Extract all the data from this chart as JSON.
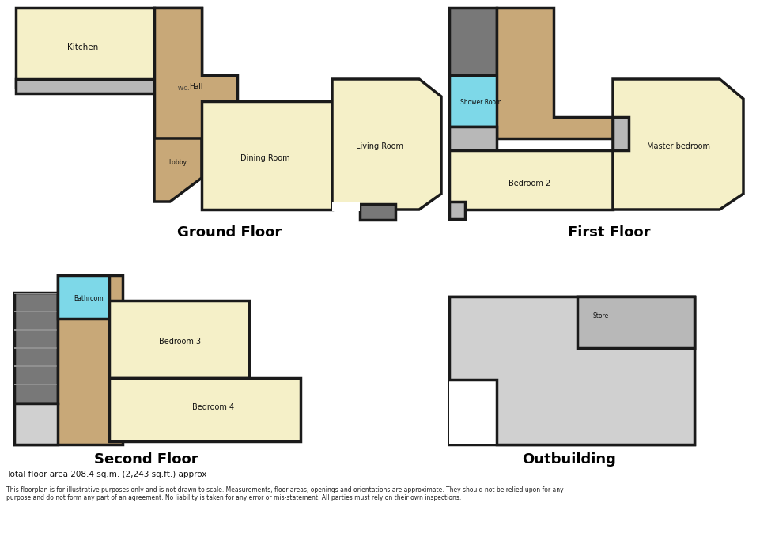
{
  "bg_color": "#ffffff",
  "wall_color": "#1a1a1a",
  "room_colors": {
    "cream": "#f5f0c8",
    "brown": "#c8a878",
    "cyan": "#7dd8e8",
    "grey": "#b8b8b8",
    "dark_grey": "#787878",
    "light_grey": "#d0d0d0",
    "stair_grey": "#909090"
  },
  "labels": {
    "ground_floor": "Ground Floor",
    "first_floor": "First Floor",
    "second_floor": "Second Floor",
    "outbuilding": "Outbuilding",
    "kitchen": "Kitchen",
    "hall": "Hall",
    "lobby": "Lobby",
    "wc": "W.C.",
    "dining_room": "Dining Room",
    "living_room": "Living Room",
    "shower_room": "Shower Room",
    "bedroom2": "Bedroom 2",
    "master_bedroom": "Master bedroom",
    "bathroom": "Bathroom",
    "bedroom3": "Bedroom 3",
    "bedroom4": "Bedroom 4",
    "store": "Store"
  },
  "footer1": "Total floor area 208.4 sq.m. (2,243 sq.ft.) approx",
  "footer2": "This floorplan is for illustrative purposes only and is not drawn to scale. Measurements, floor-areas, openings and orientations are approximate. They should not be relied upon for any\npurpose and do not form any part of an agreement. No liability is taken for any error or mis-statement. All parties must rely on their own inspections."
}
